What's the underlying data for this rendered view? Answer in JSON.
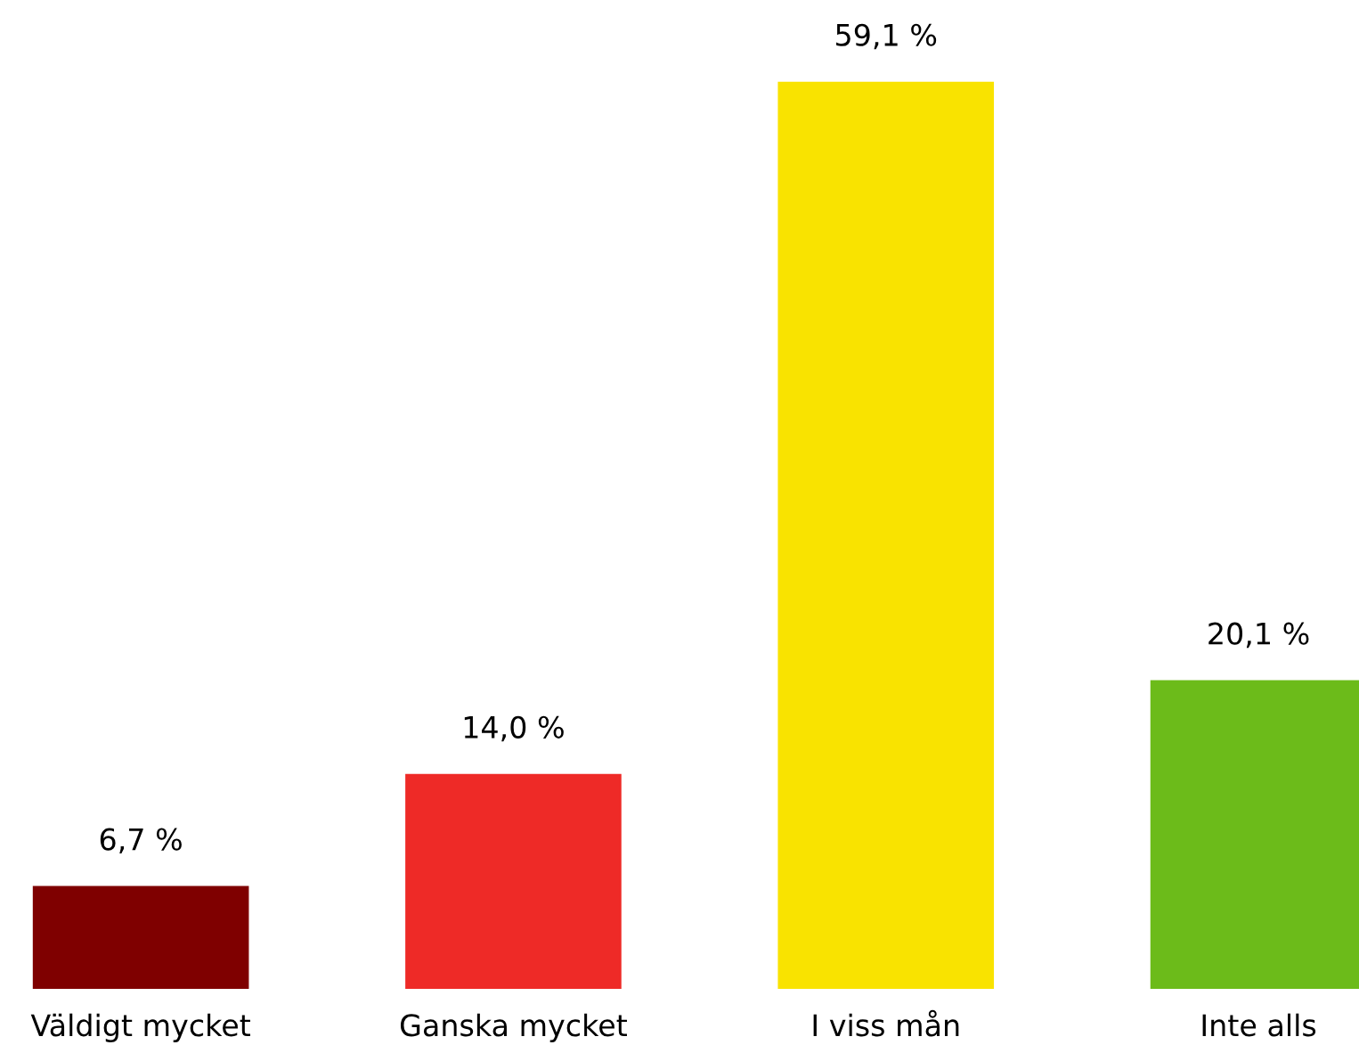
{
  "chart_data": {
    "type": "bar",
    "categories": [
      "Väldigt mycket",
      "Ganska mycket",
      "I viss mån",
      "Inte alls"
    ],
    "values": [
      6.7,
      14.0,
      59.1,
      20.1
    ],
    "colors": [
      "#7f0000",
      "#ee2a27",
      "#f9e300",
      "#6cbb1a"
    ],
    "value_labels": [
      "6,7 %",
      "14,0 %",
      "59,1 %",
      "20,1 %"
    ],
    "tick_labels": "x",
    "grid": false,
    "legend": false
  }
}
